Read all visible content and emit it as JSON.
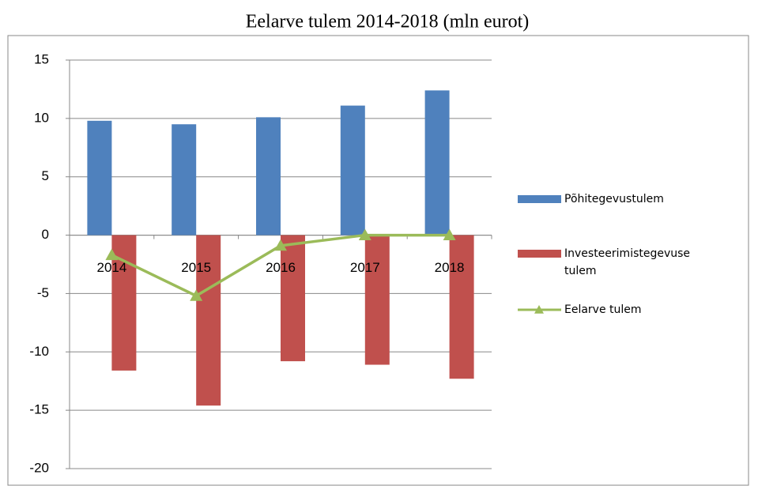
{
  "chart_data": {
    "type": "bar_line",
    "title": "Eelarve tulem 2014-2018 (mln eurot)",
    "categories": [
      "2014",
      "2015",
      "2016",
      "2017",
      "2018"
    ],
    "series": [
      {
        "name": "Põhitegevustulem",
        "color": "#4f81bd",
        "type": "bar",
        "values": [
          9.8,
          9.5,
          10.1,
          11.1,
          12.4
        ]
      },
      {
        "name": "Investeerimistegevuse tulem",
        "color": "#c0504d",
        "type": "bar",
        "values": [
          -11.6,
          -14.6,
          -10.8,
          -11.1,
          -12.3
        ]
      },
      {
        "name": "Eelarve tulem",
        "color": "#9bbb59",
        "type": "line",
        "values": [
          -1.7,
          -5.2,
          -0.9,
          0,
          0
        ]
      }
    ],
    "ylim": [
      -20,
      15
    ],
    "yticks": [
      -20,
      -15,
      -10,
      -5,
      0,
      5,
      10,
      15
    ],
    "grid": true,
    "legend": "right"
  }
}
